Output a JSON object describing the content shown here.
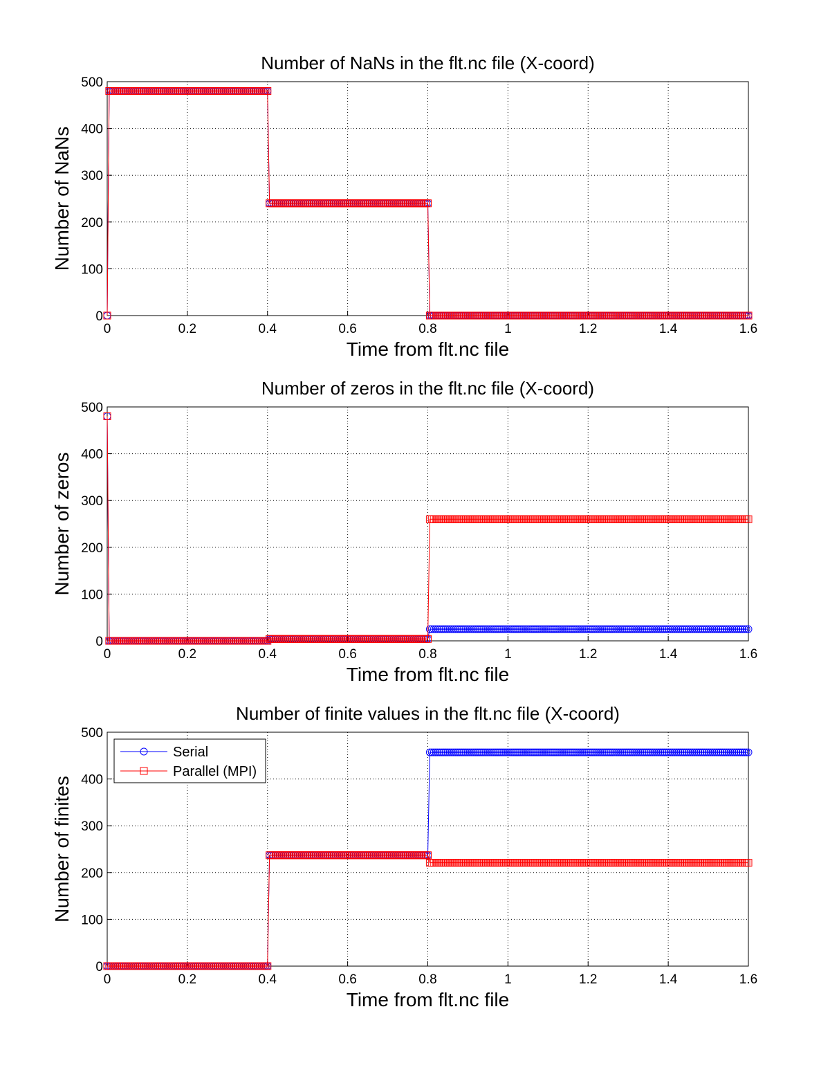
{
  "chart_data": [
    {
      "type": "line",
      "title": "Number of NaNs in the flt.nc file (X-coord)",
      "xlabel": "Time from flt.nc file",
      "ylabel": "Number of NaNs",
      "xlim": [
        0,
        1.6
      ],
      "ylim": [
        0,
        500
      ],
      "xticks": [
        "0",
        "0.2",
        "0.4",
        "0.6",
        "0.8",
        "1",
        "1.2",
        "1.4",
        "1.6"
      ],
      "yticks": [
        "0",
        "100",
        "200",
        "300",
        "400",
        "500"
      ],
      "grid": true,
      "series": [
        {
          "name": "Serial",
          "color": "#0000ff",
          "marker": "circle",
          "first": 0,
          "segments": [
            [
              0.005,
              0.4,
              480
            ],
            [
              0.405,
              0.8,
              240
            ],
            [
              0.805,
              1.6,
              0
            ]
          ]
        },
        {
          "name": "Parallel (MPI)",
          "color": "#ff0000",
          "marker": "square",
          "first": 0,
          "segments": [
            [
              0.005,
              0.4,
              480
            ],
            [
              0.405,
              0.8,
              240
            ],
            [
              0.805,
              1.6,
              0
            ]
          ]
        }
      ]
    },
    {
      "type": "line",
      "title": "Number of zeros in the flt.nc file (X-coord)",
      "xlabel": "Time from flt.nc file",
      "ylabel": "Number of zeros",
      "xlim": [
        0,
        1.6
      ],
      "ylim": [
        0,
        500
      ],
      "xticks": [
        "0",
        "0.2",
        "0.4",
        "0.6",
        "0.8",
        "1",
        "1.2",
        "1.4",
        "1.6"
      ],
      "yticks": [
        "0",
        "100",
        "200",
        "300",
        "400",
        "500"
      ],
      "grid": true,
      "series": [
        {
          "name": "Serial",
          "color": "#0000ff",
          "marker": "circle",
          "first": 480,
          "segments": [
            [
              0.005,
              0.4,
              0
            ],
            [
              0.405,
              0.8,
              4
            ],
            [
              0.805,
              1.6,
              25
            ]
          ]
        },
        {
          "name": "Parallel (MPI)",
          "color": "#ff0000",
          "marker": "square",
          "first": 480,
          "segments": [
            [
              0.005,
              0.4,
              0
            ],
            [
              0.405,
              0.8,
              4
            ],
            [
              0.805,
              1.6,
              260
            ]
          ]
        }
      ]
    },
    {
      "type": "line",
      "title": "Number of finite values in the flt.nc file (X-coord)",
      "xlabel": "Time from flt.nc file",
      "ylabel": "Number of finites",
      "xlim": [
        0,
        1.6
      ],
      "ylim": [
        0,
        500
      ],
      "xticks": [
        "0",
        "0.2",
        "0.4",
        "0.6",
        "0.8",
        "1",
        "1.2",
        "1.4",
        "1.6"
      ],
      "yticks": [
        "0",
        "100",
        "200",
        "300",
        "400",
        "500"
      ],
      "grid": true,
      "legend": {
        "placement": "top-left",
        "entries": [
          "Serial",
          "Parallel (MPI)"
        ]
      },
      "series": [
        {
          "name": "Serial",
          "color": "#0000ff",
          "marker": "circle",
          "first": 0,
          "segments": [
            [
              0.005,
              0.4,
              0
            ],
            [
              0.405,
              0.8,
              237
            ],
            [
              0.805,
              1.6,
              457
            ]
          ]
        },
        {
          "name": "Parallel (MPI)",
          "color": "#ff0000",
          "marker": "square",
          "first": 0,
          "segments": [
            [
              0.005,
              0.4,
              0
            ],
            [
              0.405,
              0.8,
              237
            ],
            [
              0.805,
              1.6,
              221
            ]
          ]
        }
      ]
    }
  ]
}
